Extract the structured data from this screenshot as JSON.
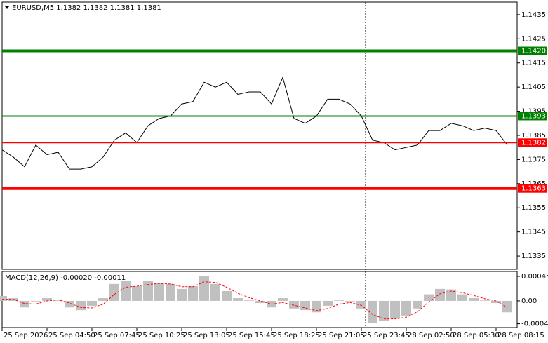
{
  "chart_data": [
    {
      "type": "line",
      "title": "EURUSD,M5  1.1382 1.1382 1.1381 1.1381",
      "color": "#000000",
      "categories": [
        "25 Sep 2026",
        null,
        null,
        null,
        "25 Sep 04:50",
        null,
        null,
        null,
        "25 Sep 07:45",
        null,
        null,
        null,
        "25 Sep 10:25",
        null,
        null,
        null,
        "25 Sep 13:05",
        null,
        null,
        null,
        "25 Sep 15:45",
        null,
        null,
        null,
        "25 Sep 18:25",
        null,
        null,
        null,
        "25 Sep 21:05",
        null,
        null,
        null,
        "25 Sep 23:45",
        null,
        null,
        null,
        "28 Sep 02:50",
        null,
        null,
        null,
        "28 Sep 05:30",
        null,
        null,
        null,
        "28 Sep 08:15",
        null
      ],
      "values": [
        1.1379,
        1.1376,
        1.1372,
        1.1381,
        1.1377,
        1.1378,
        1.1371,
        1.1371,
        1.1372,
        1.1376,
        1.1383,
        1.1386,
        1.1382,
        1.1389,
        1.1392,
        1.1393,
        1.1398,
        1.1399,
        1.1407,
        1.1405,
        1.1407,
        1.1402,
        1.1403,
        1.1403,
        1.1398,
        1.1409,
        1.1392,
        1.139,
        1.1393,
        1.14,
        1.14,
        1.1398,
        1.1393,
        1.1383,
        1.1382,
        1.1379,
        1.138,
        1.1381,
        1.1387,
        1.1387,
        1.139,
        1.1389,
        1.1387,
        1.1388,
        1.1387,
        1.1381
      ],
      "ylim": [
        1.13295,
        1.14402
      ],
      "yticks": [
        1.1435,
        1.1425,
        1.1415,
        1.1405,
        1.1395,
        1.1385,
        1.1375,
        1.1365,
        1.1355,
        1.1345,
        1.1335
      ],
      "levels": [
        {
          "value": 1.142,
          "label": "1.1420",
          "color": "#008000",
          "weight": "thick"
        },
        {
          "value": 1.1393,
          "label": "1.1393",
          "color": "#008000",
          "weight": "thin"
        },
        {
          "value": 1.1382,
          "label": "1.1382",
          "color": "#ff0000",
          "weight": "thin"
        },
        {
          "value": 1.1363,
          "label": "1.1363",
          "color": "#ff0000",
          "weight": "thick"
        }
      ]
    },
    {
      "type": "bar",
      "title": "MACD(12,26,9) -0.00020 -0.00011",
      "color": "#c0c0c0",
      "values": [
        9e-05,
        5e-05,
        -0.00012,
        -1e-05,
        5e-05,
        1e-05,
        -0.00012,
        -0.00017,
        -9e-05,
        5e-05,
        0.00031,
        0.00037,
        0.00027,
        0.00037,
        0.00033,
        0.00031,
        0.00022,
        0.00027,
        0.00046,
        0.00031,
        0.00018,
        5e-05,
        1e-05,
        -4e-05,
        -0.00012,
        5e-05,
        -0.00014,
        -0.00017,
        -0.00021,
        -9e-05,
        1e-05,
        -1e-05,
        -0.00014,
        -0.0004,
        -0.00037,
        -0.00033,
        -0.00027,
        -0.00014,
        0.00012,
        0.00022,
        0.00021,
        0.00012,
        5e-05,
        1e-05,
        -4e-05,
        -0.00021
      ],
      "signal": {
        "color": "#ff0000",
        "values": [
          3e-05,
          3e-05,
          -5e-05,
          -6e-05,
          0,
          2e-05,
          -4e-05,
          -0.00012,
          -0.00013,
          -6e-05,
          0.00012,
          0.00025,
          0.00027,
          0.0003,
          0.00032,
          0.00031,
          0.00026,
          0.00026,
          0.00035,
          0.00034,
          0.00025,
          0.00014,
          6e-05,
          0,
          -6e-05,
          -3e-05,
          -8e-05,
          -0.00013,
          -0.00018,
          -0.00014,
          -6e-05,
          -3e-05,
          -8e-05,
          -0.00025,
          -0.00033,
          -0.00033,
          -0.0003,
          -0.0002,
          -2e-05,
          0.00013,
          0.00018,
          0.00015,
          0.0001,
          4e-05,
          0,
          -0.00012
        ]
      },
      "ylim": [
        -0.00049,
        0.00054
      ],
      "yticks": [
        0.00045,
        {
          "value": 0,
          "label": "0.00"
        },
        -0.00042
      ]
    }
  ]
}
